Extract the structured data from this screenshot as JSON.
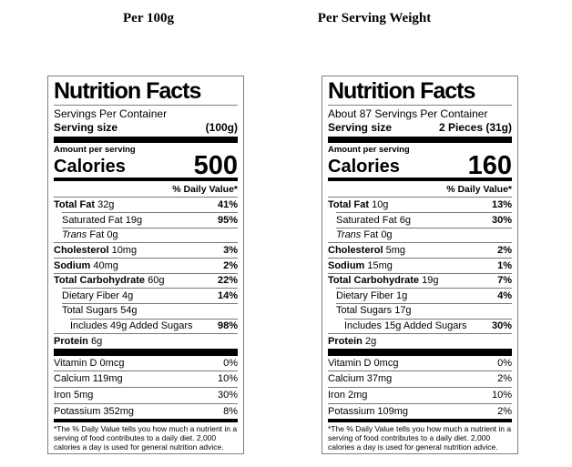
{
  "colors": {
    "text": "#000000",
    "bar": "#000000",
    "hairline": "#777777",
    "border": "#808080"
  },
  "labels": [
    {
      "title": "Per 100g",
      "heading": "Nutrition Facts",
      "servings_per_container": "Servings Per Container",
      "serving_size_label": "Serving size",
      "serving_size_value": "(100g)",
      "amount_per_serving": "Amount per serving",
      "calories_label": "Calories",
      "calories_value": "500",
      "daily_value_header": "% Daily Value*",
      "nutrients": [
        {
          "bold": "Total Fat",
          "text": " 32g",
          "dv": "41%",
          "indent": 0
        },
        {
          "text": "Saturated Fat 19g",
          "dv": "95%",
          "indent": 1
        },
        {
          "italic": "Trans",
          "text": " Fat 0g",
          "dv": "",
          "indent": 1
        },
        {
          "bold": "Cholesterol",
          "text": " 10mg",
          "dv": "3%",
          "indent": 0
        },
        {
          "bold": "Sodium",
          "text": " 40mg",
          "dv": "2%",
          "indent": 0
        },
        {
          "bold": "Total Carbohydrate",
          "text": " 60g",
          "dv": "22%",
          "indent": 0
        },
        {
          "text": "Dietary Fiber 4g",
          "dv": "14%",
          "indent": 1
        },
        {
          "text": "Total Sugars 54g",
          "dv": "",
          "indent": 1
        },
        {
          "text": "Includes 49g Added Sugars",
          "dv": "98%",
          "indent": 2
        },
        {
          "bold": "Protein",
          "text": " 6g",
          "dv": "",
          "indent": 0
        }
      ],
      "vitamins": [
        {
          "text": "Vitamin D 0mcg",
          "dv": "0%"
        },
        {
          "text": "Calcium 119mg",
          "dv": "10%"
        },
        {
          "text": "Iron 5mg",
          "dv": "30%"
        },
        {
          "text": "Potassium 352mg",
          "dv": "8%"
        }
      ],
      "footnote": "*The % Daily Value tells you how much a nutrient in a serving of food contributes to a daily diet. 2,000 calories a day is used for general nutrition advice."
    },
    {
      "title": "Per Serving Weight",
      "heading": "Nutrition Facts",
      "servings_per_container": "About 87 Servings Per Container",
      "serving_size_label": "Serving size",
      "serving_size_value": "2 Pieces (31g)",
      "amount_per_serving": "Amount per serving",
      "calories_label": "Calories",
      "calories_value": "160",
      "daily_value_header": "% Daily Value*",
      "nutrients": [
        {
          "bold": "Total Fat",
          "text": " 10g",
          "dv": "13%",
          "indent": 0
        },
        {
          "text": "Saturated Fat 6g",
          "dv": "30%",
          "indent": 1
        },
        {
          "italic": "Trans",
          "text": " Fat 0g",
          "dv": "",
          "indent": 1
        },
        {
          "bold": "Cholesterol",
          "text": " 5mg",
          "dv": "2%",
          "indent": 0
        },
        {
          "bold": "Sodium",
          "text": " 15mg",
          "dv": "1%",
          "indent": 0
        },
        {
          "bold": "Total Carbohydrate",
          "text": " 19g",
          "dv": "7%",
          "indent": 0
        },
        {
          "text": "Dietary Fiber 1g",
          "dv": "4%",
          "indent": 1
        },
        {
          "text": "Total Sugars 17g",
          "dv": "",
          "indent": 1
        },
        {
          "text": "Includes 15g Added Sugars",
          "dv": "30%",
          "indent": 2
        },
        {
          "bold": "Protein",
          "text": " 2g",
          "dv": "",
          "indent": 0
        }
      ],
      "vitamins": [
        {
          "text": "Vitamin D 0mcg",
          "dv": "0%"
        },
        {
          "text": "Calcium 37mg",
          "dv": "2%"
        },
        {
          "text": "Iron 2mg",
          "dv": "10%"
        },
        {
          "text": "Potassium 109mg",
          "dv": "2%"
        }
      ],
      "footnote": "*The % Daily Value tells you how much a nutrient in a serving of food contributes to a daily diet. 2,000 calories a day is used for general nutrition advice."
    }
  ]
}
